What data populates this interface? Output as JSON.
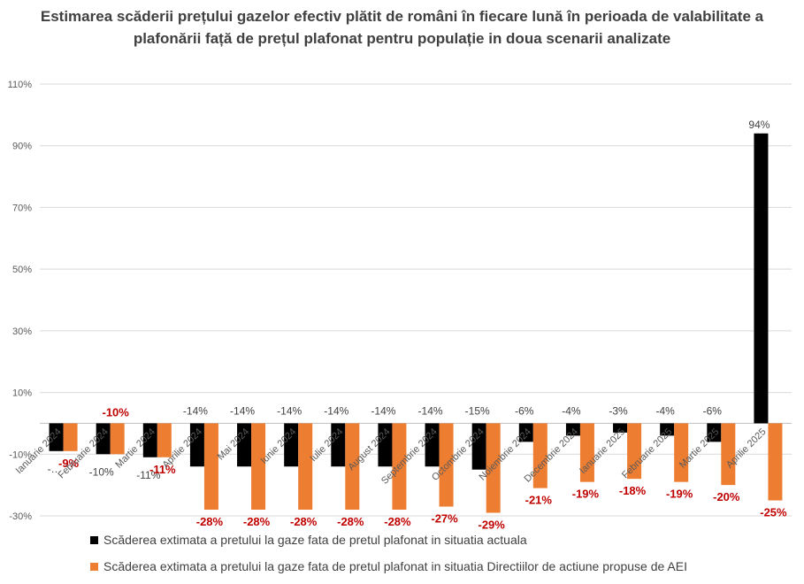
{
  "chart_data": {
    "type": "bar",
    "title": "Estimarea scăderii prețului gazelor efectiv plătit de români în fiecare lună în perioada de valabilitate a plafonării față de prețul plafonat pentru populație in doua scenarii analizate",
    "categories": [
      "Ianuarie 2024",
      "Februarie 2024",
      "Martie 2024",
      "Aprilie 2024",
      "Mai 2024",
      "Iunie 2024",
      "Iulie 2024",
      "August 2024",
      "Septembrie 2024",
      "Octombrie 2024",
      "Noiembrie 2024",
      "Decembrie 2024",
      "Ianuarie 2025",
      "Februarie 2025",
      "Martie 2025",
      "Aprilie 2025"
    ],
    "series": [
      {
        "name": "Scăderea extimata a pretului la gaze fata de pretul plafonat in situatia actuala",
        "color": "#000000",
        "values": [
          -9,
          -10,
          -11,
          -14,
          -14,
          -14,
          -14,
          -14,
          -14,
          -15,
          -6,
          -4,
          -3,
          -4,
          -6,
          94
        ],
        "labels": [
          "-…",
          "-10%",
          "-11%",
          "-14%",
          "-14%",
          "-14%",
          "-14%",
          "-14%",
          "-14%",
          "-15%",
          "-6%",
          "-4%",
          "-3%",
          "-4%",
          "-6%",
          "94%"
        ],
        "label_color": "#404040"
      },
      {
        "name": "Scăderea extimata a pretului la gaze fata de pretul plafonat in situatia Directiilor de actiune propuse de AEI",
        "color": "#ED7D31",
        "values": [
          -9,
          -10,
          -11,
          -28,
          -28,
          -28,
          -28,
          -28,
          -27,
          -29,
          -21,
          -19,
          -18,
          -19,
          -20,
          -25
        ],
        "labels": [
          "-9%",
          "-10%",
          "-11%",
          "-28%",
          "-28%",
          "-28%",
          "-28%",
          "-28%",
          "-27%",
          "-29%",
          "-21%",
          "-19%",
          "-18%",
          "-19%",
          "-20%",
          "-25%"
        ],
        "label_color": "#C00000"
      }
    ],
    "yticks": [
      "110%",
      "90%",
      "70%",
      "50%",
      "30%",
      "10%",
      "-10%",
      "-30%"
    ],
    "ytick_values": [
      110,
      90,
      70,
      50,
      30,
      10,
      -10,
      -30
    ],
    "ylim": [
      -30,
      110
    ],
    "grid": true,
    "legend_position": "bottom-left"
  }
}
